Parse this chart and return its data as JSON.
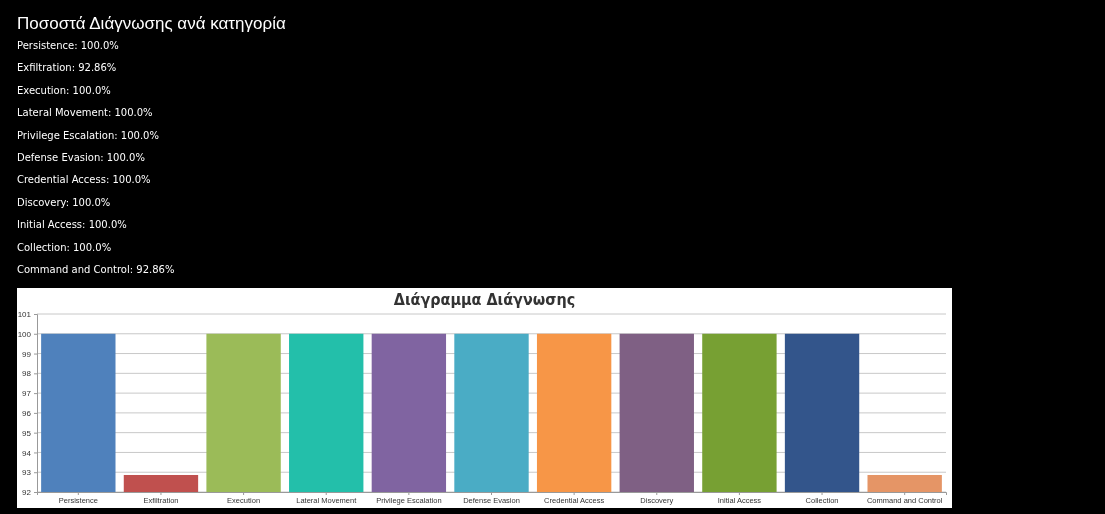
{
  "chart_data": {
    "type": "bar",
    "title": "Διάγραμμα Διάγνωσης",
    "annotations": [
      "Ποσοστά Διάγνωσης ανά κατηγορία",
      "Persistence: 100.0%",
      "Exfiltration: 92.86%",
      "Execution: 100.0%",
      "Lateral Movement: 100.0%",
      "Privilege Escalation: 100.0%",
      "Defense Evasion: 100.0%",
      "Credential Access: 100.0%",
      "Discovery: 100.0%",
      "Initial Access: 100.0%",
      "Collection: 100.0%",
      "Command and Control: 92.86%"
    ],
    "categories": [
      "Persistence",
      "Exfiltration",
      "Execution",
      "Lateral Movement",
      "Privilege Escalation",
      "Defense Evasion",
      "Credential Access",
      "Discovery",
      "Initial Access",
      "Collection",
      "Command and Control"
    ],
    "values": [
      100,
      92.86,
      100,
      100,
      100,
      100,
      100,
      100,
      100,
      100,
      92.86
    ],
    "colors": [
      "#4f81bc",
      "#c0504e",
      "#9bbb58",
      "#23bfaa",
      "#8064a1",
      "#4aacc5",
      "#f79647",
      "#7f6084",
      "#77a033",
      "#33558b",
      "#e59566"
    ],
    "ylim": [
      92,
      101
    ],
    "yticks": [
      92,
      93,
      94,
      95,
      96,
      97,
      98,
      99,
      100,
      101
    ],
    "grid": "y"
  }
}
